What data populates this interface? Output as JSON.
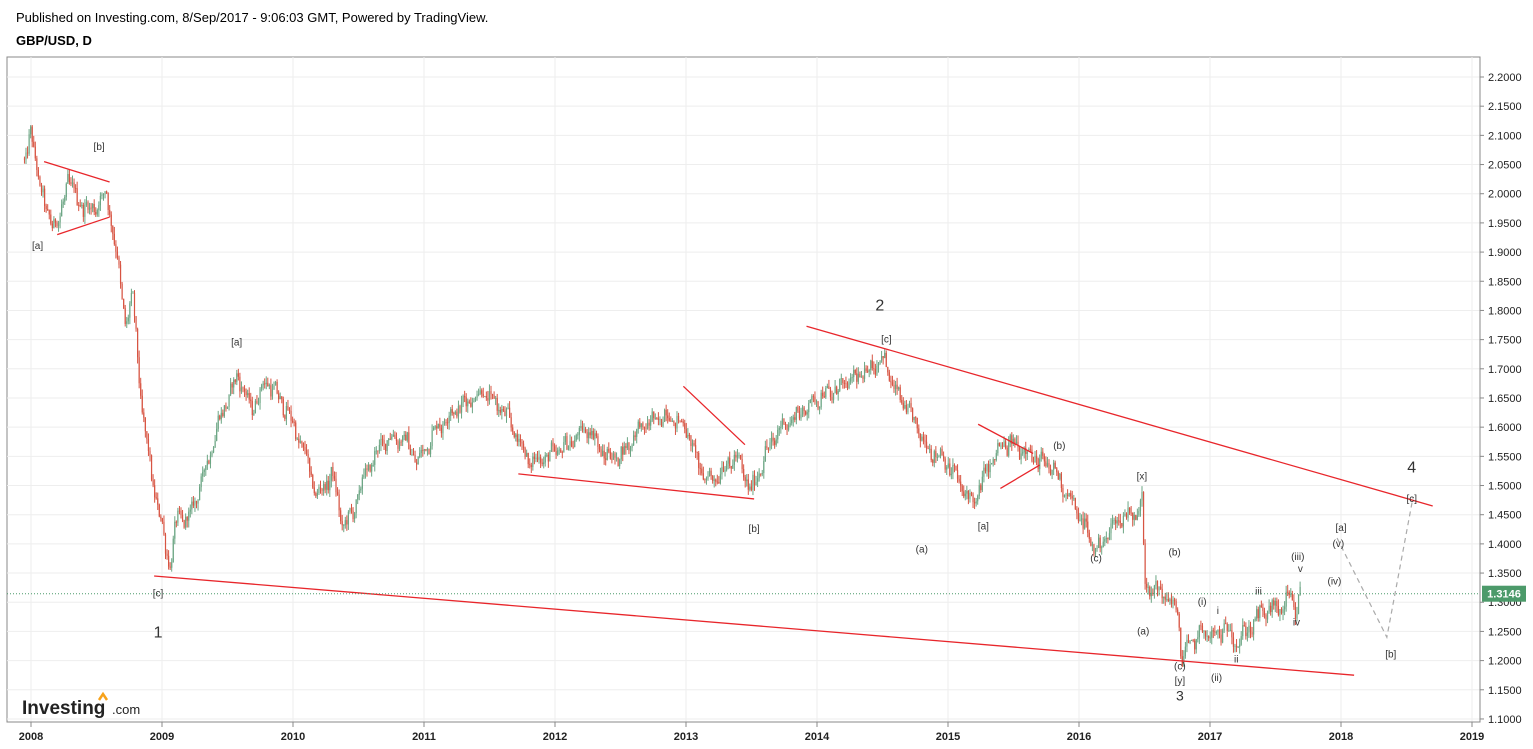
{
  "header": {
    "published": "Published on Investing.com, 8/Sep/2017 - 9:06:03 GMT, Powered by TradingView.",
    "symbol": "GBP/USD, D"
  },
  "logo": {
    "brand": "Investing",
    "suffix": ".com"
  },
  "colors": {
    "up": "#6ba583",
    "down": "#d75442",
    "trendline": "#e8262b",
    "grid": "#eeeeee",
    "frame": "#888888",
    "last_price_bg": "#4c9a6a",
    "projection": "#aaaaaa",
    "wave_text": "#333333"
  },
  "chart_data": {
    "type": "candlestick",
    "title": "GBP/USD, D",
    "x_ticks": [
      "2008",
      "2009",
      "2010",
      "2011",
      "2012",
      "2013",
      "2014",
      "2015",
      "2016",
      "2017",
      "2018",
      "2019"
    ],
    "y_ticks": [
      "2.2000",
      "2.1500",
      "2.1000",
      "2.0500",
      "2.0000",
      "1.9500",
      "1.9000",
      "1.8500",
      "1.8000",
      "1.7500",
      "1.7000",
      "1.6500",
      "1.6000",
      "1.5500",
      "1.5000",
      "1.4500",
      "1.4000",
      "1.3500",
      "1.3000",
      "1.2500",
      "1.2000",
      "1.1500",
      "1.1000"
    ],
    "ylim": [
      1.1,
      2.2
    ],
    "last_price": "1.3146",
    "price_path": [
      [
        2007.95,
        2.06
      ],
      [
        2008.0,
        2.1
      ],
      [
        2008.05,
        2.04
      ],
      [
        2008.12,
        1.96
      ],
      [
        2008.22,
        1.95
      ],
      [
        2008.28,
        2.03
      ],
      [
        2008.35,
        1.99
      ],
      [
        2008.45,
        1.97
      ],
      [
        2008.58,
        2.0
      ],
      [
        2008.65,
        1.9
      ],
      [
        2008.72,
        1.78
      ],
      [
        2008.78,
        1.82
      ],
      [
        2008.85,
        1.62
      ],
      [
        2008.95,
        1.48
      ],
      [
        2009.0,
        1.43
      ],
      [
        2009.06,
        1.36
      ],
      [
        2009.12,
        1.45
      ],
      [
        2009.2,
        1.44
      ],
      [
        2009.32,
        1.52
      ],
      [
        2009.45,
        1.62
      ],
      [
        2009.58,
        1.69
      ],
      [
        2009.68,
        1.63
      ],
      [
        2009.8,
        1.68
      ],
      [
        2009.95,
        1.63
      ],
      [
        2010.1,
        1.55
      ],
      [
        2010.18,
        1.48
      ],
      [
        2010.3,
        1.52
      ],
      [
        2010.38,
        1.43
      ],
      [
        2010.45,
        1.45
      ],
      [
        2010.55,
        1.52
      ],
      [
        2010.7,
        1.58
      ],
      [
        2010.85,
        1.58
      ],
      [
        2010.95,
        1.54
      ],
      [
        2011.1,
        1.6
      ],
      [
        2011.3,
        1.64
      ],
      [
        2011.45,
        1.66
      ],
      [
        2011.6,
        1.63
      ],
      [
        2011.72,
        1.58
      ],
      [
        2011.8,
        1.54
      ],
      [
        2011.95,
        1.55
      ],
      [
        2012.1,
        1.57
      ],
      [
        2012.25,
        1.6
      ],
      [
        2012.38,
        1.55
      ],
      [
        2012.5,
        1.55
      ],
      [
        2012.65,
        1.6
      ],
      [
        2012.85,
        1.62
      ],
      [
        2013.0,
        1.6
      ],
      [
        2013.12,
        1.52
      ],
      [
        2013.2,
        1.51
      ],
      [
        2013.3,
        1.53
      ],
      [
        2013.38,
        1.55
      ],
      [
        2013.5,
        1.49
      ],
      [
        2013.6,
        1.55
      ],
      [
        2013.72,
        1.6
      ],
      [
        2013.85,
        1.62
      ],
      [
        2014.0,
        1.65
      ],
      [
        2014.12,
        1.66
      ],
      [
        2014.25,
        1.68
      ],
      [
        2014.35,
        1.69
      ],
      [
        2014.45,
        1.71
      ],
      [
        2014.5,
        1.72
      ],
      [
        2014.6,
        1.66
      ],
      [
        2014.72,
        1.62
      ],
      [
        2014.85,
        1.56
      ],
      [
        2014.95,
        1.55
      ],
      [
        2015.05,
        1.52
      ],
      [
        2015.12,
        1.49
      ],
      [
        2015.2,
        1.47
      ],
      [
        2015.3,
        1.53
      ],
      [
        2015.42,
        1.57
      ],
      [
        2015.5,
        1.57
      ],
      [
        2015.6,
        1.56
      ],
      [
        2015.7,
        1.54
      ],
      [
        2015.8,
        1.53
      ],
      [
        2015.9,
        1.49
      ],
      [
        2016.0,
        1.45
      ],
      [
        2016.1,
        1.4
      ],
      [
        2016.15,
        1.39
      ],
      [
        2016.25,
        1.43
      ],
      [
        2016.35,
        1.45
      ],
      [
        2016.45,
        1.45
      ],
      [
        2016.48,
        1.49
      ],
      [
        2016.5,
        1.34
      ],
      [
        2016.55,
        1.32
      ],
      [
        2016.62,
        1.32
      ],
      [
        2016.7,
        1.3
      ],
      [
        2016.76,
        1.28
      ],
      [
        2016.78,
        1.2
      ],
      [
        2016.85,
        1.23
      ],
      [
        2016.95,
        1.25
      ],
      [
        2017.05,
        1.24
      ],
      [
        2017.12,
        1.26
      ],
      [
        2017.2,
        1.23
      ],
      [
        2017.28,
        1.25
      ],
      [
        2017.38,
        1.28
      ],
      [
        2017.48,
        1.29
      ],
      [
        2017.55,
        1.29
      ],
      [
        2017.62,
        1.31
      ],
      [
        2017.65,
        1.28
      ],
      [
        2017.69,
        1.3146
      ]
    ],
    "trendlines": [
      {
        "x1": 2008.1,
        "y1": 2.055,
        "x2": 2008.6,
        "y2": 2.02
      },
      {
        "x1": 2008.2,
        "y1": 1.93,
        "x2": 2008.6,
        "y2": 1.96
      },
      {
        "x1": 2008.94,
        "y1": 1.345,
        "x2": 2018.1,
        "y2": 1.175
      },
      {
        "x1": 2011.72,
        "y1": 1.52,
        "x2": 2013.52,
        "y2": 1.477
      },
      {
        "x1": 2012.98,
        "y1": 1.67,
        "x2": 2013.45,
        "y2": 1.57
      },
      {
        "x1": 2013.92,
        "y1": 1.773,
        "x2": 2018.7,
        "y2": 1.465
      },
      {
        "x1": 2015.23,
        "y1": 1.605,
        "x2": 2015.65,
        "y2": 1.555
      },
      {
        "x1": 2015.4,
        "y1": 1.495,
        "x2": 2015.7,
        "y2": 1.535
      }
    ],
    "projection": [
      [
        2017.97,
        1.41
      ],
      [
        2018.35,
        1.24
      ],
      [
        2018.55,
        1.48
      ]
    ],
    "wave_labels": [
      {
        "t": "[b]",
        "x": 2008.52,
        "y": 2.075,
        "s": 10
      },
      {
        "t": "[a]",
        "x": 2008.05,
        "y": 1.905,
        "s": 10
      },
      {
        "t": "[c]",
        "x": 2008.97,
        "y": 1.31,
        "s": 10
      },
      {
        "t": "1",
        "x": 2008.97,
        "y": 1.24,
        "s": 16
      },
      {
        "t": "[a]",
        "x": 2009.57,
        "y": 1.74,
        "s": 10
      },
      {
        "t": "[b]",
        "x": 2013.52,
        "y": 1.42,
        "s": 10
      },
      {
        "t": "2",
        "x": 2014.48,
        "y": 1.8,
        "s": 16
      },
      {
        "t": "[c]",
        "x": 2014.53,
        "y": 1.745,
        "s": 10
      },
      {
        "t": "(a)",
        "x": 2014.8,
        "y": 1.385,
        "s": 10
      },
      {
        "t": "[a]",
        "x": 2015.27,
        "y": 1.425,
        "s": 10
      },
      {
        "t": "(b)",
        "x": 2015.85,
        "y": 1.563,
        "s": 10
      },
      {
        "t": "[x]",
        "x": 2016.48,
        "y": 1.51,
        "s": 10
      },
      {
        "t": "(c)",
        "x": 2016.13,
        "y": 1.37,
        "s": 10
      },
      {
        "t": "(b)",
        "x": 2016.73,
        "y": 1.38,
        "s": 10
      },
      {
        "t": "(a)",
        "x": 2016.49,
        "y": 1.245,
        "s": 10
      },
      {
        "t": "(i)",
        "x": 2016.94,
        "y": 1.295,
        "s": 10
      },
      {
        "t": "i",
        "x": 2017.06,
        "y": 1.28,
        "s": 10
      },
      {
        "t": "(c)",
        "x": 2016.77,
        "y": 1.185,
        "s": 10
      },
      {
        "t": "[y]",
        "x": 2016.77,
        "y": 1.16,
        "s": 10
      },
      {
        "t": "3",
        "x": 2016.77,
        "y": 1.132,
        "s": 14
      },
      {
        "t": "(ii)",
        "x": 2017.05,
        "y": 1.165,
        "s": 10
      },
      {
        "t": "ii",
        "x": 2017.2,
        "y": 1.197,
        "s": 10
      },
      {
        "t": "iii",
        "x": 2017.37,
        "y": 1.313,
        "s": 10
      },
      {
        "t": "(iii)",
        "x": 2017.67,
        "y": 1.372,
        "s": 10
      },
      {
        "t": "v",
        "x": 2017.69,
        "y": 1.352,
        "s": 10
      },
      {
        "t": "iv",
        "x": 2017.66,
        "y": 1.26,
        "s": 10
      },
      {
        "t": "(iv)",
        "x": 2017.95,
        "y": 1.33,
        "s": 10
      },
      {
        "t": "(v)",
        "x": 2017.98,
        "y": 1.395,
        "s": 10
      },
      {
        "t": "[a]",
        "x": 2018.0,
        "y": 1.422,
        "s": 10
      },
      {
        "t": "[b]",
        "x": 2018.38,
        "y": 1.205,
        "s": 10
      },
      {
        "t": "4",
        "x": 2018.54,
        "y": 1.522,
        "s": 16
      },
      {
        "t": "[c]",
        "x": 2018.54,
        "y": 1.472,
        "s": 10
      }
    ]
  }
}
